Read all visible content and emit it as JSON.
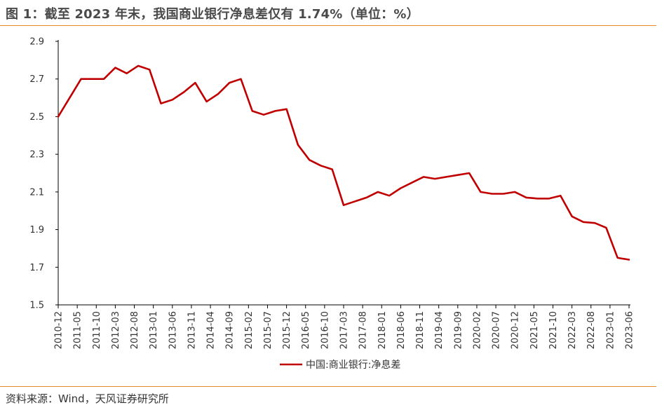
{
  "title": "图 1：截至 2023 年末，我国商业银行净息差仅有 1.74%（单位：%）",
  "source": "资料来源：Wind，天风证券研究所",
  "colors": {
    "series": "#c00000",
    "accent": "#e8892a",
    "axis": "#000000"
  },
  "chart_data": {
    "type": "line",
    "ylim": [
      1.5,
      2.9
    ],
    "yticks": [
      1.5,
      1.7,
      1.9,
      2.1,
      2.3,
      2.5,
      2.7,
      2.9
    ],
    "ytick_labels": [
      "1.5",
      "1.7",
      "1.9",
      "2.1",
      "2.3",
      "2.5",
      "2.7",
      "2.9"
    ],
    "grid": false,
    "legend_position": "bottom-center",
    "x_tick_labels": [
      "2010-12",
      "2011-05",
      "2011-10",
      "2012-03",
      "2012-08",
      "2013-01",
      "2013-06",
      "2013-11",
      "2014-04",
      "2014-09",
      "2015-02",
      "2015-07",
      "2015-12",
      "2016-05",
      "2016-10",
      "2017-03",
      "2017-08",
      "2018-01",
      "2018-06",
      "2018-11",
      "2019-04",
      "2019-09",
      "2020-02",
      "2020-07",
      "2020-12",
      "2021-05",
      "2021-10",
      "2022-03",
      "2022-08",
      "2023-01",
      "2023-06"
    ],
    "x": [
      "2010-12",
      "2011-03",
      "2011-06",
      "2011-09",
      "2011-12",
      "2012-03",
      "2012-06",
      "2012-09",
      "2012-12",
      "2013-03",
      "2013-06",
      "2013-09",
      "2013-12",
      "2014-03",
      "2014-06",
      "2014-09",
      "2014-12",
      "2015-03",
      "2015-06",
      "2015-09",
      "2015-12",
      "2016-03",
      "2016-06",
      "2016-09",
      "2016-12",
      "2017-03",
      "2017-06",
      "2017-09",
      "2017-12",
      "2018-03",
      "2018-06",
      "2018-09",
      "2018-12",
      "2019-03",
      "2019-06",
      "2019-09",
      "2019-12",
      "2020-03",
      "2020-06",
      "2020-09",
      "2020-12",
      "2021-03",
      "2021-06",
      "2021-09",
      "2021-12",
      "2022-03",
      "2022-06",
      "2022-09",
      "2022-12",
      "2023-03",
      "2023-06"
    ],
    "series": [
      {
        "name": "中国:商业银行:净息差",
        "values": [
          2.5,
          2.6,
          2.7,
          2.7,
          2.7,
          2.76,
          2.73,
          2.77,
          2.75,
          2.57,
          2.59,
          2.63,
          2.68,
          2.58,
          2.62,
          2.68,
          2.7,
          2.53,
          2.51,
          2.53,
          2.54,
          2.35,
          2.27,
          2.24,
          2.22,
          2.03,
          2.05,
          2.07,
          2.1,
          2.08,
          2.12,
          2.15,
          2.18,
          2.17,
          2.18,
          2.19,
          2.2,
          2.1,
          2.09,
          2.09,
          2.1,
          2.07,
          2.065,
          2.065,
          2.08,
          1.97,
          1.94,
          1.935,
          1.91,
          1.75,
          1.74
        ]
      }
    ]
  }
}
